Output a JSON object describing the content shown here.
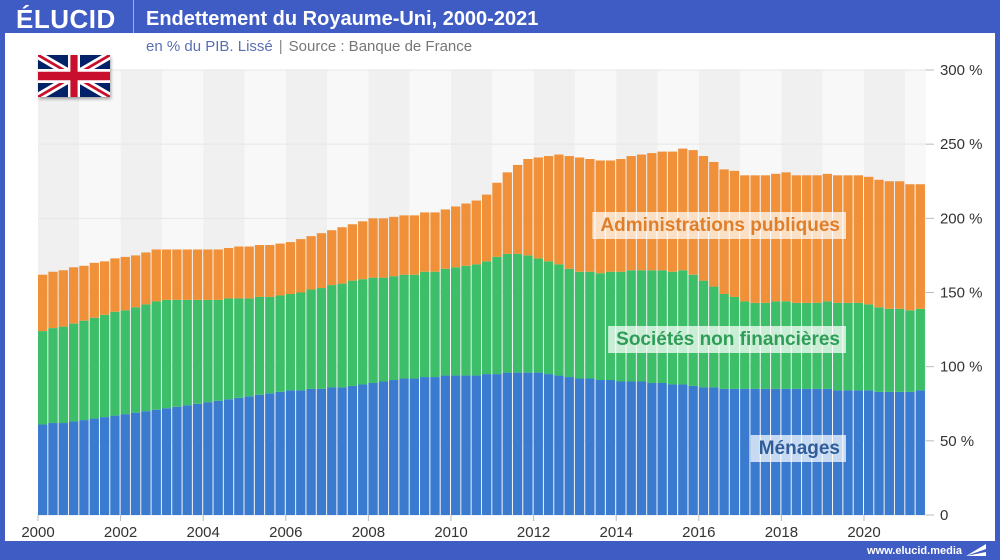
{
  "header": {
    "brand": "ÉLUCID",
    "title": "Endettement du Royaume-Uni, 2000-2021",
    "subtitle_unit": "en % du PIB. Lissé",
    "subtitle_sep": "|",
    "subtitle_source": "Source : Banque de France"
  },
  "footer": {
    "url": "www.elucid.media"
  },
  "colors": {
    "frame": "#3f5bc4",
    "menages": "#3a7bd0",
    "societes": "#3dbf6a",
    "administrations": "#f0913a"
  },
  "flag_icon": "uk-flag-icon",
  "chart_data": {
    "type": "bar",
    "stacked": true,
    "title": "Endettement du Royaume-Uni, 2000-2021",
    "xlabel": "",
    "ylabel": "en % du PIB",
    "ylim": [
      0,
      300
    ],
    "xlim": [
      2000,
      2021.5
    ],
    "frequency": "quarterly",
    "start": 2000,
    "x_ticks": [
      "2000",
      "2002",
      "2004",
      "2006",
      "2008",
      "2010",
      "2012",
      "2014",
      "2016",
      "2018",
      "2020"
    ],
    "y_ticks": [
      "0",
      "50 %",
      "100 %",
      "150 %",
      "200 %",
      "250 %",
      "300 %"
    ],
    "y_tick_values": [
      0,
      50,
      100,
      150,
      200,
      250,
      300
    ],
    "grid": true,
    "series": [
      {
        "name": "Ménages",
        "values": [
          61,
          62,
          62,
          63,
          64,
          65,
          66,
          67,
          68,
          69,
          70,
          71,
          72,
          73,
          74,
          75,
          76,
          77,
          78,
          79,
          80,
          81,
          82,
          83,
          84,
          84,
          85,
          85,
          86,
          86,
          87,
          88,
          89,
          90,
          91,
          92,
          92,
          93,
          93,
          94,
          94,
          94,
          94,
          95,
          95,
          96,
          96,
          96,
          96,
          95,
          94,
          93,
          92,
          92,
          91,
          91,
          90,
          90,
          90,
          89,
          89,
          88,
          88,
          87,
          86,
          86,
          85,
          85,
          85,
          85,
          85,
          85,
          85,
          85,
          85,
          85,
          85,
          84,
          84,
          84,
          84,
          83,
          83,
          83,
          83,
          84
        ]
      },
      {
        "name": "Sociétés non financières",
        "values": [
          63,
          64,
          65,
          66,
          67,
          68,
          69,
          70,
          70,
          71,
          72,
          73,
          73,
          72,
          71,
          70,
          69,
          68,
          68,
          67,
          66,
          66,
          65,
          65,
          65,
          66,
          67,
          68,
          69,
          70,
          71,
          71,
          71,
          70,
          70,
          70,
          70,
          71,
          71,
          72,
          73,
          74,
          75,
          76,
          79,
          80,
          80,
          79,
          77,
          76,
          75,
          73,
          72,
          72,
          72,
          73,
          74,
          75,
          75,
          76,
          76,
          76,
          77,
          75,
          72,
          68,
          64,
          62,
          59,
          58,
          58,
          59,
          59,
          58,
          58,
          58,
          59,
          59,
          59,
          59,
          58,
          57,
          56,
          56,
          55,
          55
        ]
      },
      {
        "name": "Administrations publiques",
        "values": [
          38,
          38,
          38,
          38,
          37,
          37,
          36,
          36,
          36,
          35,
          35,
          35,
          34,
          34,
          34,
          34,
          34,
          34,
          34,
          35,
          35,
          35,
          35,
          35,
          35,
          36,
          36,
          37,
          37,
          38,
          38,
          39,
          40,
          40,
          40,
          40,
          40,
          40,
          40,
          40,
          41,
          42,
          43,
          45,
          50,
          55,
          60,
          65,
          68,
          71,
          74,
          76,
          77,
          76,
          76,
          75,
          76,
          77,
          78,
          79,
          80,
          81,
          82,
          84,
          84,
          84,
          84,
          85,
          85,
          86,
          86,
          86,
          87,
          86,
          86,
          86,
          86,
          86,
          86,
          86,
          86,
          86,
          86,
          86,
          85,
          84
        ]
      }
    ],
    "annotations": [
      "Administrations publiques",
      "Sociétés non financières",
      "Ménages"
    ]
  }
}
